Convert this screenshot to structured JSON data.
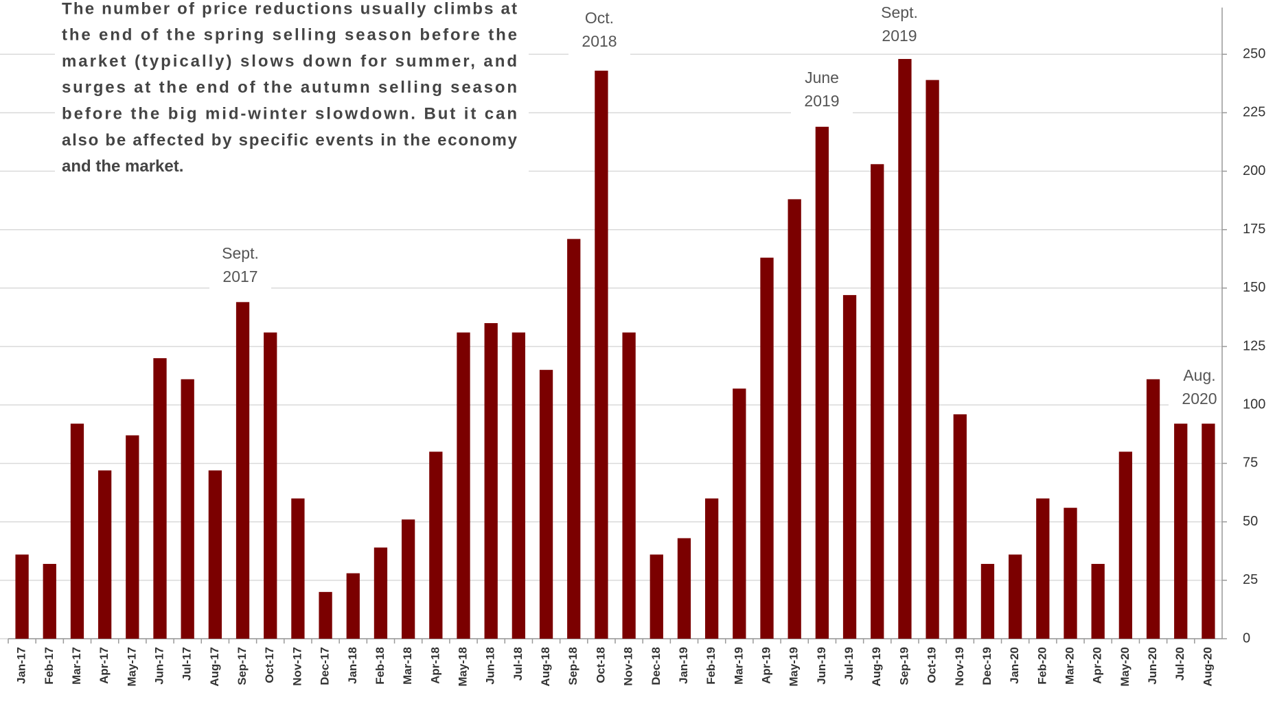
{
  "chart_data": {
    "type": "bar",
    "note": [
      "The number of price reductions usually climbs at",
      "the end of the spring selling season before the",
      "market (typically) slows down for summer, and",
      "surges at the end of the autumn selling season",
      "before the big mid-winter slowdown. But it can",
      "also be affected by specific events in the economy",
      "and the market."
    ],
    "annotations": [
      {
        "lines": [
          "Sept.",
          "2017"
        ]
      },
      {
        "lines": [
          "Oct.",
          "2018"
        ]
      },
      {
        "lines": [
          "June",
          "2019"
        ]
      },
      {
        "lines": [
          "Sept.",
          "2019"
        ]
      },
      {
        "lines": [
          "Aug.",
          "2020"
        ]
      }
    ],
    "categories": [
      "Jan-17",
      "Feb-17",
      "Mar-17",
      "Apr-17",
      "May-17",
      "Jun-17",
      "Jul-17",
      "Aug-17",
      "Sep-17",
      "Oct-17",
      "Nov-17",
      "Dec-17",
      "Jan-18",
      "Feb-18",
      "Mar-18",
      "Apr-18",
      "May-18",
      "Jun-18",
      "Jul-18",
      "Aug-18",
      "Sep-18",
      "Oct-18",
      "Nov-18",
      "Dec-18",
      "Jan-19",
      "Feb-19",
      "Mar-19",
      "Apr-19",
      "May-19",
      "Jun-19",
      "Jul-19",
      "Aug-19",
      "Sep-19",
      "Oct-19",
      "Nov-19",
      "Dec-19",
      "Jan-20",
      "Feb-20",
      "Mar-20",
      "Apr-20",
      "May-20",
      "Jun-20",
      "Jul-20",
      "Aug-20"
    ],
    "values": [
      36,
      32,
      92,
      72,
      87,
      120,
      111,
      72,
      144,
      131,
      60,
      20,
      28,
      39,
      51,
      80,
      131,
      135,
      131,
      115,
      171,
      243,
      131,
      36,
      43,
      60,
      107,
      163,
      188,
      219,
      147,
      203,
      248,
      239,
      96,
      32,
      36,
      60,
      56,
      32,
      80,
      111,
      92,
      92
    ],
    "color": "#7b0000",
    "ylim": [
      0,
      270
    ],
    "yticks": [
      0,
      25,
      50,
      75,
      100,
      125,
      150,
      175,
      200,
      225,
      250
    ],
    "grid": true
  }
}
